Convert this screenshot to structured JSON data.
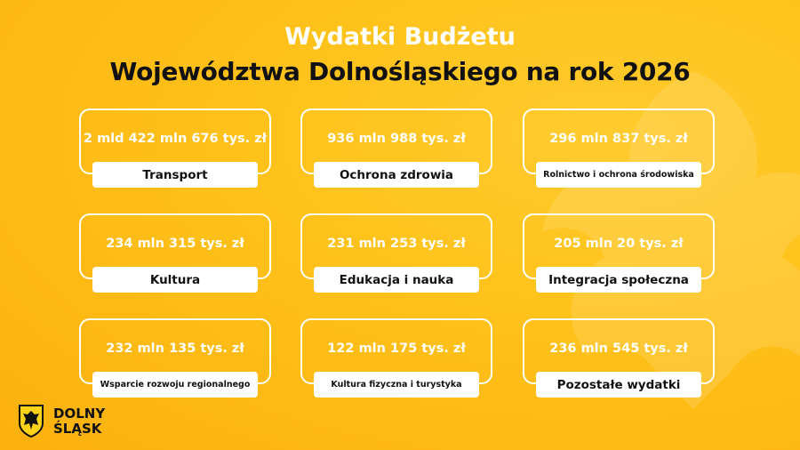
{
  "header": {
    "title_line1": "Wydatki Budżetu",
    "title_line2": "Województwa Dolnośląskiego na rok 2026"
  },
  "cards": [
    {
      "amount": "2 mld 422 mln 676 tys. zł",
      "label": "Transport"
    },
    {
      "amount": "936 mln 988 tys. zł",
      "label": "Ochrona zdrowia"
    },
    {
      "amount": "296 mln 837 tys. zł",
      "label": "Rolnictwo i ochrona środowiska"
    },
    {
      "amount": "234 mln 315 tys. zł",
      "label": "Kultura"
    },
    {
      "amount": "231 mln 253 tys. zł",
      "label": "Edukacja i nauka"
    },
    {
      "amount": "205 mln 20 tys. zł",
      "label": "Integracja społeczna"
    },
    {
      "amount": "232 mln 135 tys. zł",
      "label": "Wsparcie rozwoju regionalnego"
    },
    {
      "amount": "122 mln 175 tys. zł",
      "label": "Kultura fizyczna i turystyka"
    },
    {
      "amount": "236 mln 545 tys. zł",
      "label": "Pozostałe wydatki"
    }
  ],
  "logo": {
    "line1": "DOLNY",
    "line2": "ŚLĄSK"
  }
}
